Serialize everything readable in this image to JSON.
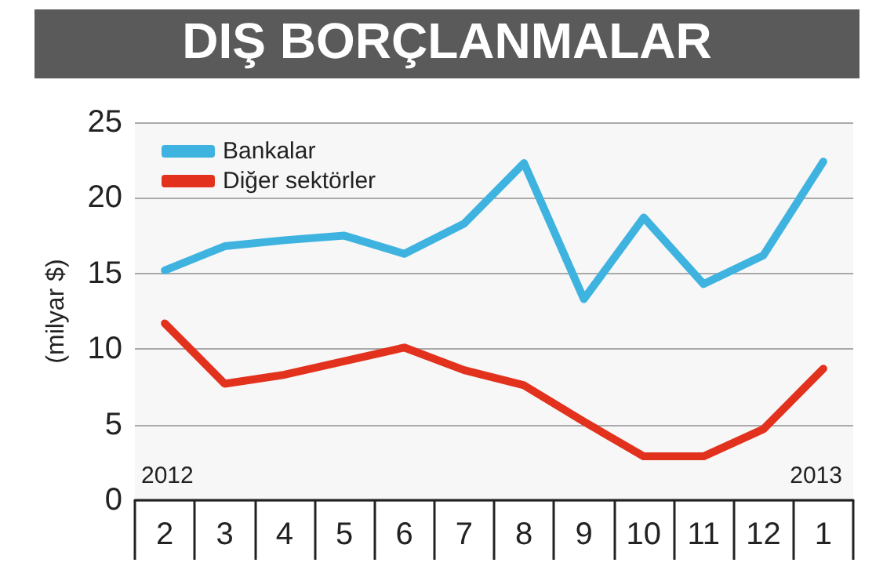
{
  "chart_data": {
    "type": "line",
    "title": "DIŞ BORÇLANMALAR",
    "ylabel": "(milyar $)",
    "categories": [
      "2",
      "3",
      "4",
      "5",
      "6",
      "7",
      "8",
      "9",
      "10",
      "11",
      "12",
      "1"
    ],
    "series": [
      {
        "name": "Bankalar",
        "color": "#3fb3e0",
        "values": [
          15.2,
          16.8,
          17.2,
          17.5,
          16.3,
          18.3,
          22.3,
          13.3,
          18.7,
          14.3,
          16.2,
          22.4
        ]
      },
      {
        "name": "Diğer sektörler",
        "color": "#e2321e",
        "values": [
          11.7,
          7.7,
          8.3,
          9.2,
          10.1,
          8.6,
          7.6,
          5.2,
          2.9,
          2.9,
          4.7,
          8.7
        ]
      }
    ],
    "annotations": [
      "2012",
      "2013"
    ],
    "ylim": [
      0,
      25
    ],
    "yticks": [
      0,
      5,
      10,
      15,
      20,
      25
    ],
    "grid": "y",
    "legend": "top left",
    "marker": "none",
    "line_style": "solid"
  }
}
